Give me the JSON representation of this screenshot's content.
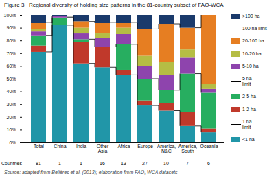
{
  "chart_data": {
    "type": "bar",
    "stacked": true,
    "title": "Figure 3   Regional diversity of holding size patterns in the 81-country subset of FAO-WCA",
    "categories": [
      "Total",
      "China",
      "India",
      "Other\nAsia",
      "Africa",
      "Europe",
      "America,\nN&C",
      "America,\nSouth",
      "Oceania"
    ],
    "series": [
      {
        "name": "<1 ha",
        "color": "#2196A8",
        "values": [
          71,
          92,
          62,
          59,
          53,
          29,
          25,
          13,
          8
        ],
        "limit": "1 ha\nlimit"
      },
      {
        "name": "1-2 ha",
        "color": "#c0392b",
        "values": [
          5,
          0,
          17,
          16,
          4,
          4,
          6,
          11,
          3
        ]
      },
      {
        "name": "2-5 ha",
        "color": "#27ae60",
        "values": [
          8,
          6,
          2,
          0,
          20,
          17,
          10,
          30,
          28
        ],
        "limit": "5 ha\nlimit"
      },
      {
        "name": "5-10 ha",
        "color": "#8e44ad",
        "values": [
          3,
          1,
          5,
          7,
          8,
          10,
          12,
          13,
          3
        ]
      },
      {
        "name": "10-20 ha",
        "color": "#b5bd44",
        "values": [
          2,
          0,
          4,
          4,
          5,
          8,
          10,
          6,
          4
        ]
      },
      {
        "name": "20-100 ha",
        "color": "#e67e22",
        "values": [
          5,
          0,
          5,
          8,
          4,
          21,
          30,
          17,
          54
        ],
        "limit": "100 ha limit"
      },
      {
        "name": ">100 ha",
        "color": "#1a3a6b",
        "values": [
          6,
          1,
          5,
          6,
          6,
          11,
          7,
          10,
          0
        ]
      }
    ],
    "countries": {
      "label": "Countries",
      "values": [
        81,
        1,
        1,
        16,
        13,
        27,
        10,
        7,
        6
      ]
    },
    "ylim": [
      0,
      100
    ],
    "yticks": [
      {
        "value": 0,
        "label": "0%"
      },
      {
        "value": 10,
        "label": "10%"
      },
      {
        "value": 20,
        "label": "20%"
      },
      {
        "value": 30,
        "label": "30%"
      },
      {
        "value": 40,
        "label": "40%"
      },
      {
        "value": 50,
        "label": "50%"
      },
      {
        "value": 60,
        "label": "60%"
      },
      {
        "value": 70,
        "label": "70%"
      },
      {
        "value": 80,
        "label": "80%"
      },
      {
        "value": 90,
        "label": "90%"
      },
      {
        "value": 100,
        "label": "100%"
      }
    ],
    "legend": "right",
    "grid": false,
    "source": "Source: adapted from Belières et al. (2013); elaboration from FAO, WCA datasets"
  }
}
